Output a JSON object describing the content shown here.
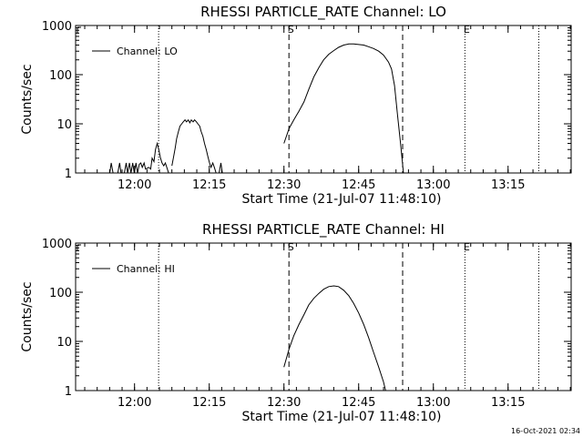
{
  "footer": {
    "timestamp": "16-Oct-2021 02:34"
  },
  "colors": {
    "background": "#ffffff",
    "ink": "#000000"
  },
  "chart_data": [
    {
      "type": "line",
      "title": "RHESSI PARTICLE_RATE Channel: LO",
      "xlabel": "Start Time (21-Jul-07 11:48:10)",
      "ylabel": "Counts/sec",
      "yscale": "log",
      "xlim": [
        11.8028,
        13.4611
      ],
      "ylim": [
        1,
        1000
      ],
      "x_tick_values": [
        12.0,
        12.25,
        12.5,
        12.75,
        13.0,
        13.25
      ],
      "x_tick_labels": [
        "12:00",
        "12:15",
        "12:30",
        "12:45",
        "13:00",
        "13:15"
      ],
      "y_tick_values": [
        1,
        10,
        100,
        1000
      ],
      "y_tick_labels": [
        "1",
        "10",
        "100",
        "1000"
      ],
      "legend": {
        "position": "top-left",
        "entries": [
          "Channel: LO"
        ]
      },
      "markers": [
        {
          "x": 12.0806,
          "style": "dotted",
          "label": ""
        },
        {
          "x": 12.5167,
          "style": "dashed",
          "label": "S"
        },
        {
          "x": 12.8972,
          "style": "dashed",
          "label": ""
        },
        {
          "x": 13.1056,
          "style": "dotted",
          "label": "E"
        },
        {
          "x": 13.3528,
          "style": "dotted",
          "label": ""
        }
      ],
      "series": [
        {
          "name": "Channel: LO",
          "segments": [
            [
              [
                11.917,
                1
              ],
              [
                11.922,
                1.6
              ],
              [
                11.928,
                1
              ],
              [
                11.944,
                1
              ],
              [
                11.95,
                1.6
              ],
              [
                11.955,
                1
              ]
            ],
            [
              [
                11.966,
                1
              ],
              [
                11.972,
                1.6
              ],
              [
                11.977,
                1
              ],
              [
                11.983,
                1.6
              ],
              [
                11.988,
                1
              ],
              [
                11.994,
                1.6
              ],
              [
                11.999,
                1
              ],
              [
                12.005,
                1.6
              ],
              [
                12.01,
                1
              ],
              [
                12.016,
                1.5
              ],
              [
                12.021,
                1.6
              ],
              [
                12.026,
                1.3
              ],
              [
                12.032,
                1.6
              ],
              [
                12.037,
                1.2
              ],
              [
                12.048,
                1.3
              ],
              [
                12.054,
                1.2
              ],
              [
                12.059,
                2.0
              ],
              [
                12.065,
                1.7
              ],
              [
                12.07,
                3.0
              ],
              [
                12.076,
                4.0
              ],
              [
                12.081,
                3.0
              ],
              [
                12.087,
                2.0
              ],
              [
                12.092,
                1.6
              ],
              [
                12.098,
                1.4
              ],
              [
                12.103,
                1.6
              ],
              [
                12.108,
                1.3
              ],
              [
                12.114,
                1
              ]
            ],
            [
              [
                12.125,
                1.4
              ],
              [
                12.13,
                2.0
              ],
              [
                12.136,
                3.2
              ],
              [
                12.141,
                5.0
              ],
              [
                12.147,
                7.0
              ],
              [
                12.152,
                9.0
              ],
              [
                12.158,
                10.0
              ],
              [
                12.163,
                11.0
              ],
              [
                12.169,
                12.0
              ],
              [
                12.174,
                11.0
              ],
              [
                12.18,
                12.0
              ],
              [
                12.185,
                10.5
              ],
              [
                12.19,
                12.0
              ],
              [
                12.196,
                11.0
              ],
              [
                12.201,
                12.0
              ],
              [
                12.207,
                11.0
              ],
              [
                12.212,
                10.0
              ],
              [
                12.218,
                9.0
              ],
              [
                12.223,
                7.0
              ],
              [
                12.229,
                5.5
              ],
              [
                12.234,
                4.0
              ],
              [
                12.24,
                3.0
              ],
              [
                12.245,
                2.2
              ],
              [
                12.251,
                1.6
              ],
              [
                12.256,
                1.3
              ],
              [
                12.262,
                1.6
              ],
              [
                12.267,
                1.3
              ],
              [
                12.273,
                1
              ]
            ],
            [
              [
                12.283,
                1
              ],
              [
                12.289,
                1.6
              ],
              [
                12.294,
                1
              ]
            ],
            [
              [
                12.5,
                4.0
              ],
              [
                12.517,
                8.0
              ],
              [
                12.533,
                12
              ],
              [
                12.55,
                18
              ],
              [
                12.567,
                28
              ],
              [
                12.583,
                50
              ],
              [
                12.6,
                90
              ],
              [
                12.617,
                140
              ],
              [
                12.633,
                200
              ],
              [
                12.65,
                260
              ],
              [
                12.667,
                310
              ],
              [
                12.683,
                360
              ],
              [
                12.7,
                400
              ],
              [
                12.717,
                420
              ],
              [
                12.733,
                420
              ],
              [
                12.75,
                410
              ],
              [
                12.767,
                400
              ],
              [
                12.783,
                370
              ],
              [
                12.8,
                340
              ],
              [
                12.817,
                300
              ],
              [
                12.833,
                250
              ],
              [
                12.85,
                180
              ],
              [
                12.86,
                130
              ],
              [
                12.87,
                60
              ],
              [
                12.88,
                15
              ],
              [
                12.89,
                4
              ],
              [
                12.9,
                1
              ]
            ]
          ]
        }
      ]
    },
    {
      "type": "line",
      "title": "RHESSI PARTICLE_RATE Channel: HI",
      "xlabel": "Start Time (21-Jul-07 11:48:10)",
      "ylabel": "Counts/sec",
      "yscale": "log",
      "xlim": [
        11.8028,
        13.4611
      ],
      "ylim": [
        1,
        1000
      ],
      "x_tick_values": [
        12.0,
        12.25,
        12.5,
        12.75,
        13.0,
        13.25
      ],
      "x_tick_labels": [
        "12:00",
        "12:15",
        "12:30",
        "12:45",
        "13:00",
        "13:15"
      ],
      "y_tick_values": [
        1,
        10,
        100,
        1000
      ],
      "y_tick_labels": [
        "1",
        "10",
        "100",
        "1000"
      ],
      "legend": {
        "position": "top-left",
        "entries": [
          "Channel: HI"
        ]
      },
      "markers": [
        {
          "x": 12.0806,
          "style": "dotted",
          "label": ""
        },
        {
          "x": 12.5167,
          "style": "dashed",
          "label": "S"
        },
        {
          "x": 12.8972,
          "style": "dashed",
          "label": ""
        },
        {
          "x": 13.1056,
          "style": "dotted",
          "label": "E"
        },
        {
          "x": 13.3528,
          "style": "dotted",
          "label": ""
        }
      ],
      "series": [
        {
          "name": "Channel: HI",
          "segments": [
            [
              [
                12.5,
                3.0
              ],
              [
                12.517,
                7.0
              ],
              [
                12.533,
                13
              ],
              [
                12.55,
                22
              ],
              [
                12.567,
                35
              ],
              [
                12.583,
                55
              ],
              [
                12.6,
                75
              ],
              [
                12.617,
                95
              ],
              [
                12.633,
                115
              ],
              [
                12.65,
                130
              ],
              [
                12.667,
                135
              ],
              [
                12.683,
                130
              ],
              [
                12.7,
                110
              ],
              [
                12.717,
                85
              ],
              [
                12.733,
                60
              ],
              [
                12.75,
                38
              ],
              [
                12.767,
                22
              ],
              [
                12.783,
                12
              ],
              [
                12.8,
                6
              ],
              [
                12.817,
                3
              ],
              [
                12.833,
                1.5
              ],
              [
                12.84,
                1
              ]
            ]
          ]
        }
      ]
    }
  ]
}
